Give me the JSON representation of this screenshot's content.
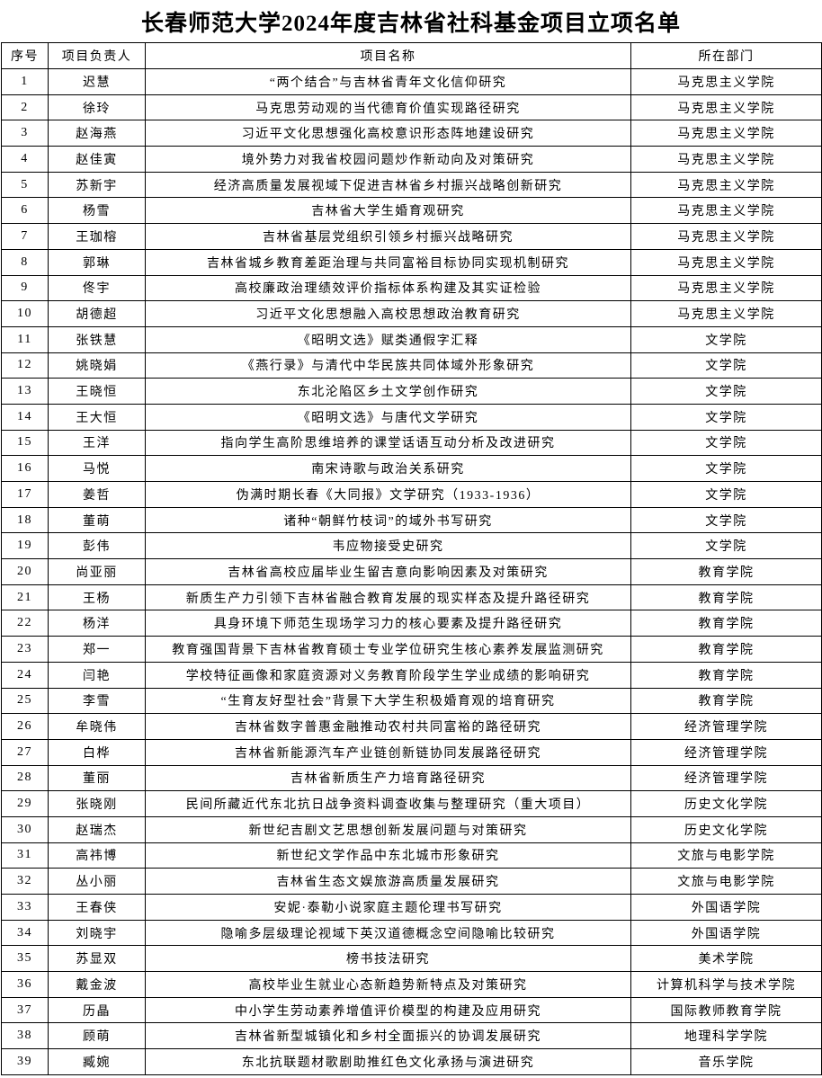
{
  "page_title": "长春师范大学2024年度吉林省社科基金项目立项名单",
  "table": {
    "headers": [
      "序号",
      "项目负责人",
      "项目名称",
      "所在部门"
    ],
    "rows": [
      {
        "no": "1",
        "leader": "迟慧",
        "project": "“两个结合”与吉林省青年文化信仰研究",
        "department": "马克思主义学院"
      },
      {
        "no": "2",
        "leader": "徐玲",
        "project": "马克思劳动观的当代德育价值实现路径研究",
        "department": "马克思主义学院"
      },
      {
        "no": "3",
        "leader": "赵海燕",
        "project": "习近平文化思想强化高校意识形态阵地建设研究",
        "department": "马克思主义学院"
      },
      {
        "no": "4",
        "leader": "赵佳寅",
        "project": "境外势力对我省校园问题炒作新动向及对策研究",
        "department": "马克思主义学院"
      },
      {
        "no": "5",
        "leader": "苏新宇",
        "project": "经济高质量发展视域下促进吉林省乡村振兴战略创新研究",
        "department": "马克思主义学院"
      },
      {
        "no": "6",
        "leader": "杨雪",
        "project": "吉林省大学生婚育观研究",
        "department": "马克思主义学院"
      },
      {
        "no": "7",
        "leader": "王珈榕",
        "project": "吉林省基层党组织引领乡村振兴战略研究",
        "department": "马克思主义学院"
      },
      {
        "no": "8",
        "leader": "郭琳",
        "project": "吉林省城乡教育差距治理与共同富裕目标协同实现机制研究",
        "department": "马克思主义学院"
      },
      {
        "no": "9",
        "leader": "佟宇",
        "project": "高校廉政治理绩效评价指标体系构建及其实证检验",
        "department": "马克思主义学院"
      },
      {
        "no": "10",
        "leader": "胡德超",
        "project": "习近平文化思想融入高校思想政治教育研究",
        "department": "马克思主义学院"
      },
      {
        "no": "11",
        "leader": "张铁慧",
        "project": "《昭明文选》赋类通假字汇释",
        "department": "文学院"
      },
      {
        "no": "12",
        "leader": "姚晓娟",
        "project": "《燕行录》与清代中华民族共同体域外形象研究",
        "department": "文学院"
      },
      {
        "no": "13",
        "leader": "王晓恒",
        "project": "东北沦陷区乡土文学创作研究",
        "department": "文学院"
      },
      {
        "no": "14",
        "leader": "王大恒",
        "project": "《昭明文选》与唐代文学研究",
        "department": "文学院"
      },
      {
        "no": "15",
        "leader": "王洋",
        "project": "指向学生高阶思维培养的课堂话语互动分析及改进研究",
        "department": "文学院"
      },
      {
        "no": "16",
        "leader": "马悦",
        "project": "南宋诗歌与政治关系研究",
        "department": "文学院"
      },
      {
        "no": "17",
        "leader": "姜哲",
        "project": "伪满时期长春《大同报》文学研究（1933-1936）",
        "department": "文学院"
      },
      {
        "no": "18",
        "leader": "董萌",
        "project": "诸种“朝鲜竹枝词”的域外书写研究",
        "department": "文学院"
      },
      {
        "no": "19",
        "leader": "彭伟",
        "project": "韦应物接受史研究",
        "department": "文学院"
      },
      {
        "no": "20",
        "leader": "尚亚丽",
        "project": "吉林省高校应届毕业生留吉意向影响因素及对策研究",
        "department": "教育学院"
      },
      {
        "no": "21",
        "leader": "王杨",
        "project": "新质生产力引领下吉林省融合教育发展的现实样态及提升路径研究",
        "department": "教育学院"
      },
      {
        "no": "22",
        "leader": "杨洋",
        "project": "具身环境下师范生现场学习力的核心要素及提升路径研究",
        "department": "教育学院"
      },
      {
        "no": "23",
        "leader": "郑一",
        "project": "教育强国背景下吉林省教育硕士专业学位研究生核心素养发展监测研究",
        "department": "教育学院"
      },
      {
        "no": "24",
        "leader": "闫艳",
        "project": "学校特征画像和家庭资源对义务教育阶段学生学业成绩的影响研究",
        "department": "教育学院"
      },
      {
        "no": "25",
        "leader": "李雪",
        "project": "“生育友好型社会”背景下大学生积极婚育观的培育研究",
        "department": "教育学院"
      },
      {
        "no": "26",
        "leader": "牟晓伟",
        "project": "吉林省数字普惠金融推动农村共同富裕的路径研究",
        "department": "经济管理学院"
      },
      {
        "no": "27",
        "leader": "白桦",
        "project": "吉林省新能源汽车产业链创新链协同发展路径研究",
        "department": "经济管理学院"
      },
      {
        "no": "28",
        "leader": "董丽",
        "project": "吉林省新质生产力培育路径研究",
        "department": "经济管理学院"
      },
      {
        "no": "29",
        "leader": "张晓刚",
        "project": "民间所藏近代东北抗日战争资料调查收集与整理研究（重大项目）",
        "department": "历史文化学院"
      },
      {
        "no": "30",
        "leader": "赵瑞杰",
        "project": "新世纪吉剧文艺思想创新发展问题与对策研究",
        "department": "历史文化学院"
      },
      {
        "no": "31",
        "leader": "高祎博",
        "project": "新世纪文学作品中东北城市形象研究",
        "department": "文旅与电影学院"
      },
      {
        "no": "32",
        "leader": "丛小丽",
        "project": "吉林省生态文娱旅游高质量发展研究",
        "department": "文旅与电影学院"
      },
      {
        "no": "33",
        "leader": "王春侠",
        "project": "安妮·泰勒小说家庭主题伦理书写研究",
        "department": "外国语学院"
      },
      {
        "no": "34",
        "leader": "刘晓宇",
        "project": "隐喻多层级理论视域下英汉道德概念空间隐喻比较研究",
        "department": "外国语学院"
      },
      {
        "no": "35",
        "leader": "苏显双",
        "project": "榜书技法研究",
        "department": "美术学院"
      },
      {
        "no": "36",
        "leader": "戴金波",
        "project": "高校毕业生就业心态新趋势新特点及对策研究",
        "department": "计算机科学与技术学院"
      },
      {
        "no": "37",
        "leader": "历晶",
        "project": "中小学生劳动素养增值评价模型的构建及应用研究",
        "department": "国际教师教育学院"
      },
      {
        "no": "38",
        "leader": "顾萌",
        "project": "吉林省新型城镇化和乡村全面振兴的协调发展研究",
        "department": "地理科学学院"
      },
      {
        "no": "39",
        "leader": "臧婉",
        "project": "东北抗联题材歌剧助推红色文化承扬与演进研究",
        "department": "音乐学院"
      }
    ]
  }
}
